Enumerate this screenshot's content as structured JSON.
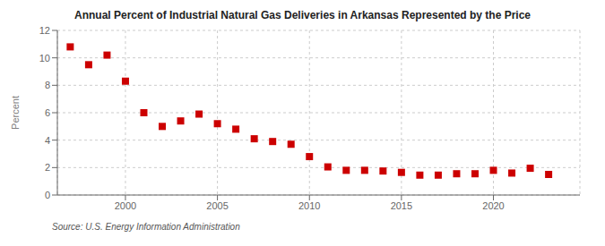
{
  "chart_data": {
    "type": "scatter",
    "title": "Annual Percent of Industrial Natural Gas Deliveries in Arkansas Represented by the Price",
    "y_label": "Percent",
    "annotations": [
      "Source: U.S. Energy Information Administration"
    ],
    "x": [
      1997,
      1998,
      1999,
      2000,
      2001,
      2002,
      2003,
      2004,
      2005,
      2006,
      2007,
      2008,
      2009,
      2010,
      2011,
      2012,
      2013,
      2014,
      2015,
      2016,
      2017,
      2018,
      2019,
      2020,
      2021,
      2022,
      2023
    ],
    "values": [
      10.8,
      9.5,
      10.2,
      8.3,
      6.0,
      5.0,
      5.4,
      5.9,
      5.2,
      4.8,
      4.1,
      3.9,
      3.7,
      2.8,
      2.05,
      1.8,
      1.8,
      1.75,
      1.65,
      1.45,
      1.45,
      1.55,
      1.55,
      1.8,
      1.6,
      1.95,
      1.5
    ],
    "color": "#cc0000",
    "marker": "square",
    "xlim": [
      1996.3,
      2024.7
    ],
    "ylim": [
      0,
      12
    ],
    "xticks": [
      2000,
      2005,
      2010,
      2015,
      2020
    ],
    "yticks": [
      0,
      2,
      4,
      6,
      8,
      10,
      12
    ],
    "grid": true
  }
}
